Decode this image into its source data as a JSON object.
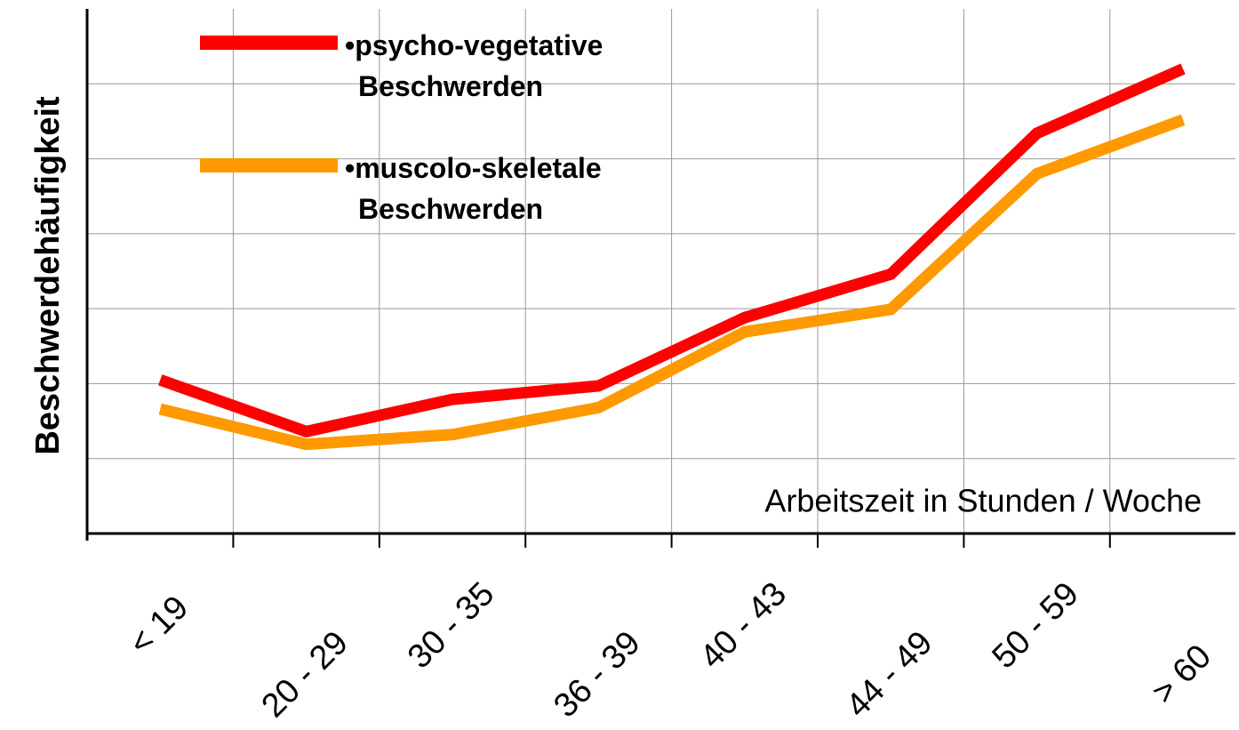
{
  "chart_data": {
    "type": "line",
    "y_label": "Beschwerdehäufigkeit",
    "x_label": "Arbeitszeit in Stunden / Woche",
    "categories": [
      "< 19",
      "20 - 29",
      "30 - 35",
      "36 - 39",
      "40 - 43",
      "44 - 49",
      "50 - 59",
      "> 60"
    ],
    "series": [
      {
        "name": "•psycho-vegetative Beschwerden",
        "color": "#ff0000",
        "values": [
          2.05,
          1.36,
          1.79,
          1.97,
          2.88,
          3.46,
          5.34,
          6.2
        ]
      },
      {
        "name": "•muscolo-skeletale Beschwerden",
        "color": "#ff9900",
        "values": [
          1.66,
          1.19,
          1.32,
          1.68,
          2.69,
          2.99,
          4.8,
          5.52
        ]
      }
    ],
    "ylim": [
      0,
      7
    ],
    "yticks": [
      1,
      2,
      3,
      4,
      5,
      6
    ],
    "grid": true,
    "legend": "upper left"
  }
}
